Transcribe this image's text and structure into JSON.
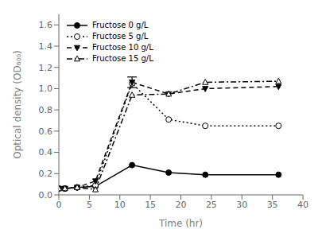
{
  "chart_data": {
    "type": "line",
    "xlabel": "Time (hr)",
    "ylabel": "Optical density (OD₆₀₀)",
    "x": [
      0,
      1,
      3,
      6,
      12,
      18,
      24,
      36
    ],
    "xlim": [
      0,
      40
    ],
    "xticks": [
      0,
      5,
      10,
      15,
      20,
      25,
      30,
      35,
      40
    ],
    "ylim": [
      0,
      1.7
    ],
    "yticks": [
      {
        "value": 0.0,
        "label": "0.0"
      },
      0.2,
      0.4,
      0.6,
      0.8,
      {
        "value": 1.0,
        "label": "1.0"
      },
      1.2,
      1.4,
      1.6
    ],
    "grid": false,
    "legend": "upper left",
    "series": [
      {
        "name": "Fructose 0 g/L",
        "color": "black",
        "marker": "circle",
        "line_style": "solid",
        "values": [
          0.06,
          0.06,
          0.07,
          0.08,
          0.28,
          0.21,
          0.19,
          0.19
        ]
      },
      {
        "name": "Fructose 5 g/L",
        "color": "black",
        "marker": "circle-open",
        "line_style": "dotted",
        "values": [
          0.06,
          0.06,
          0.07,
          0.09,
          1.05,
          0.71,
          0.65,
          0.65
        ]
      },
      {
        "name": "Fructose 10 g/L",
        "color": "black",
        "marker": "triangle-down",
        "line_style": "dashed",
        "values": [
          0.06,
          0.06,
          0.07,
          0.13,
          1.06,
          0.95,
          1.0,
          1.02
        ],
        "errors": [
          null,
          null,
          null,
          null,
          0.05,
          null,
          null,
          null
        ]
      },
      {
        "name": "Fructose 15 g/L",
        "color": "black",
        "marker": "triangle-up-open",
        "line_style": "dashdot",
        "values": [
          0.06,
          0.06,
          0.07,
          0.05,
          0.94,
          0.95,
          1.06,
          1.07
        ]
      }
    ]
  }
}
